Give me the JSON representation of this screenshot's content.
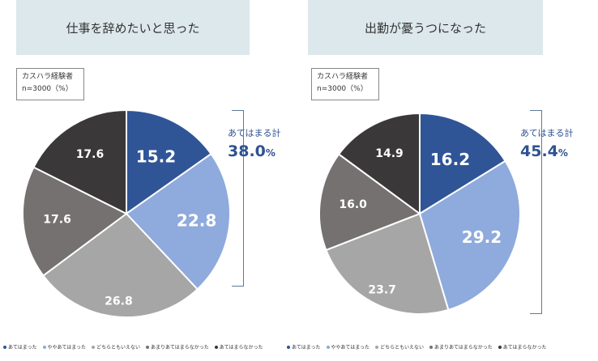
{
  "legend": {
    "categories": [
      "あてはまった",
      "ややあてはまった",
      "どちらともいえない",
      "あまりあてはまらなかった",
      "あてはまらなかった"
    ],
    "colors": [
      "#2f5597",
      "#8faadc",
      "#a6a6a6",
      "#767171",
      "#3a3838"
    ]
  },
  "panels": [
    {
      "title": "仕事を辞めたいと思った",
      "meta_line1": "カスハラ経験者",
      "meta_line2": "n=3000（%）",
      "sum_label": "あてはまる計",
      "sum_value": "38.0",
      "sum_unit": "%"
    },
    {
      "title": "出勤が憂うつになった",
      "meta_line1": "カスハラ経験者",
      "meta_line2": "n=3000（%）",
      "sum_label": "あてはまる計",
      "sum_value": "45.4",
      "sum_unit": "%"
    }
  ],
  "chart_data": [
    {
      "type": "pie",
      "title": "仕事を辞めたいと思った",
      "categories": [
        "あてはまった",
        "ややあてはまった",
        "どちらともいえない",
        "あまりあてはまらなかった",
        "あてはまらなかった"
      ],
      "values": [
        15.2,
        22.8,
        26.8,
        17.6,
        17.6
      ],
      "total_label": "あてはまる計",
      "total": 38.0
    },
    {
      "type": "pie",
      "title": "出勤が憂うつになった",
      "categories": [
        "あてはまった",
        "ややあてはまった",
        "どちらともいえない",
        "あまりあてはまらなかった",
        "あてはまらなかった"
      ],
      "values": [
        16.2,
        29.2,
        23.7,
        16.0,
        14.9
      ],
      "total_label": "あてはまる計",
      "total": 45.4
    }
  ]
}
